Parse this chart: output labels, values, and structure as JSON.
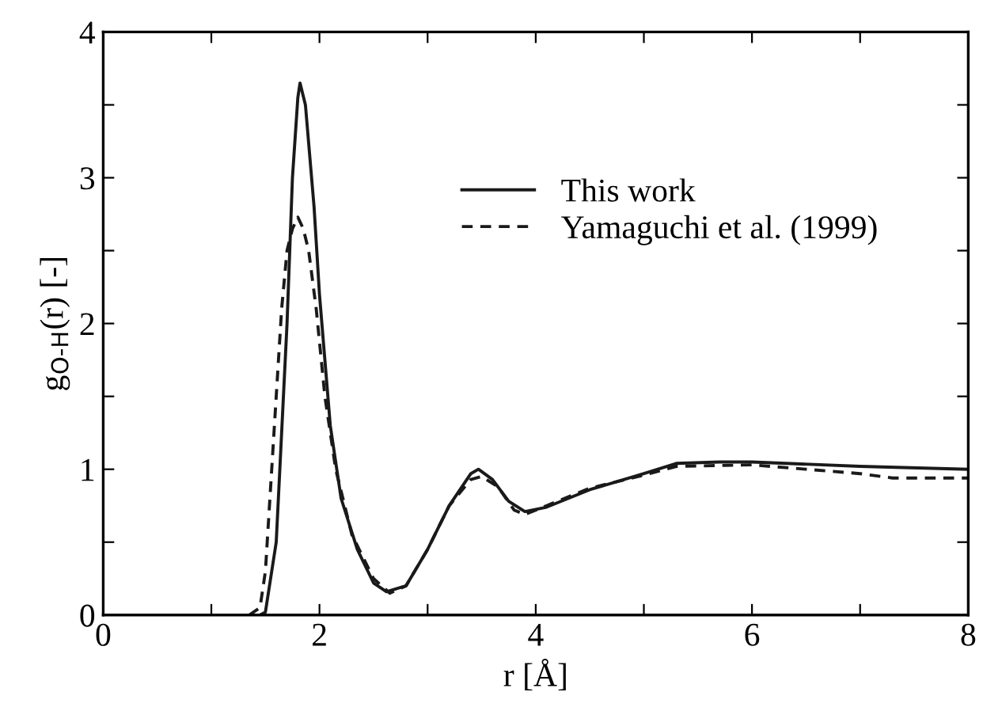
{
  "chart_data": {
    "type": "line",
    "xlabel": "r [Å]",
    "ylabel": "g$_{O-H}$(r) [-]",
    "xlim": [
      0,
      8
    ],
    "ylim": [
      0,
      4
    ],
    "xticks": [
      0,
      {
        "value": 1,
        "label": null
      },
      2,
      {
        "value": 3,
        "label": null
      },
      4,
      {
        "value": 5,
        "label": null
      },
      6,
      {
        "value": 7,
        "label": null
      },
      8
    ],
    "yticks": [
      0,
      {
        "value": 0.5,
        "label": null
      },
      1,
      {
        "value": 1.5,
        "label": null
      },
      2,
      {
        "value": 2.5,
        "label": null
      },
      3,
      {
        "value": 3.5,
        "label": null
      },
      4
    ],
    "grid": false,
    "legend": "top right",
    "marker": "none",
    "series": [
      {
        "name": "This work",
        "color": "#1a1a1a",
        "line_style": "solid",
        "x": [
          1.45,
          1.5,
          1.6,
          1.7,
          1.75,
          1.8,
          1.82,
          1.87,
          1.95,
          2.0,
          2.1,
          2.2,
          2.35,
          2.5,
          2.62,
          2.8,
          3.0,
          3.2,
          3.4,
          3.47,
          3.6,
          3.75,
          3.9,
          4.1,
          4.5,
          5.0,
          5.3,
          5.7,
          6.0,
          7.0,
          8.0
        ],
        "values": [
          0,
          0.02,
          0.5,
          2.0,
          3.0,
          3.55,
          3.65,
          3.5,
          2.8,
          2.2,
          1.3,
          0.8,
          0.45,
          0.22,
          0.16,
          0.2,
          0.45,
          0.75,
          0.97,
          1.0,
          0.93,
          0.78,
          0.71,
          0.74,
          0.86,
          0.97,
          1.04,
          1.05,
          1.05,
          1.02,
          1.0
        ]
      },
      {
        "name": "Yamaguchi et al. (1999)",
        "color": "#1a1a1a",
        "line_style": "dashed",
        "x": [
          1.35,
          1.45,
          1.5,
          1.55,
          1.6,
          1.65,
          1.7,
          1.75,
          1.8,
          1.85,
          1.9,
          1.97,
          2.05,
          2.15,
          2.3,
          2.5,
          2.65,
          2.8,
          3.0,
          3.2,
          3.4,
          3.5,
          3.65,
          3.8,
          3.9,
          4.1,
          4.5,
          5.0,
          5.3,
          6.0,
          6.5,
          7.0,
          7.3,
          8.0
        ],
        "values": [
          0,
          0.05,
          0.3,
          0.9,
          1.5,
          2.1,
          2.5,
          2.65,
          2.73,
          2.65,
          2.5,
          2.1,
          1.5,
          1.0,
          0.55,
          0.25,
          0.15,
          0.2,
          0.45,
          0.75,
          0.93,
          0.95,
          0.88,
          0.72,
          0.69,
          0.75,
          0.87,
          0.96,
          1.02,
          1.03,
          1.0,
          0.97,
          0.94,
          0.94
        ]
      }
    ]
  }
}
